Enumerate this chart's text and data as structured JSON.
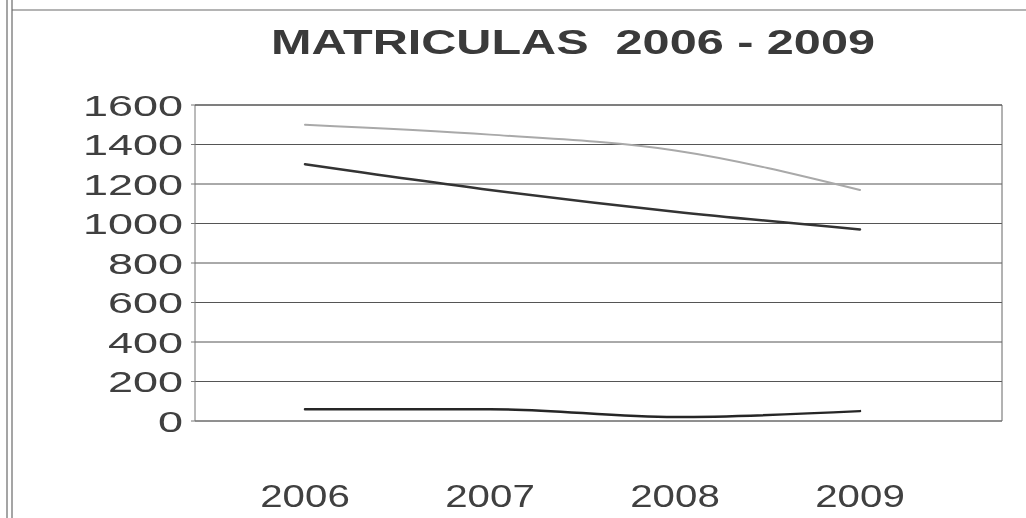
{
  "chart_data": {
    "type": "line",
    "title": "MATRICULAS  2006 - 2009",
    "categories": [
      "2006",
      "2007",
      "2008",
      "2009"
    ],
    "series": [
      {
        "color": "#a9a9a9",
        "values": [
          1500,
          1450,
          1370,
          1170
        ]
      },
      {
        "color": "#333333",
        "values": [
          1300,
          1170,
          1060,
          970
        ]
      },
      {
        "color": "#262626",
        "values": [
          60,
          60,
          20,
          50
        ]
      }
    ],
    "ylim": [
      0,
      1600
    ],
    "yticks": [
      0,
      200,
      400,
      600,
      800,
      1000,
      1200,
      1400,
      1600
    ],
    "grid": "y"
  }
}
